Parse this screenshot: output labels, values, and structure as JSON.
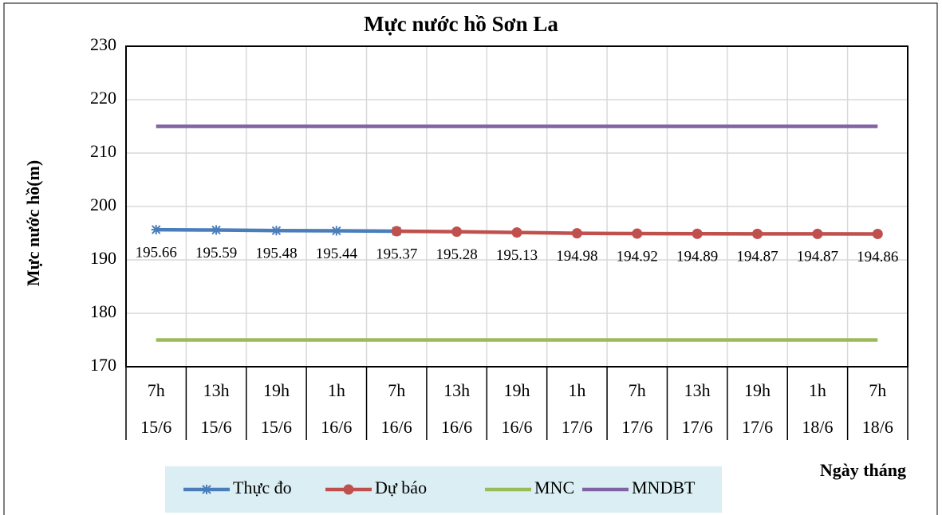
{
  "chart_data": {
    "type": "line",
    "title": "Mực nước hồ Sơn La",
    "y_label": "Mực nước hồ(m)",
    "x_label": "Ngày tháng",
    "categories": [
      [
        "7h",
        "15/6"
      ],
      [
        "13h",
        "15/6"
      ],
      [
        "19h",
        "15/6"
      ],
      [
        "1h",
        "16/6"
      ],
      [
        "7h",
        "16/6"
      ],
      [
        "13h",
        "16/6"
      ],
      [
        "19h",
        "16/6"
      ],
      [
        "1h",
        "17/6"
      ],
      [
        "7h",
        "17/6"
      ],
      [
        "13h",
        "17/6"
      ],
      [
        "19h",
        "17/6"
      ],
      [
        "1h",
        "18/6"
      ],
      [
        "7h",
        "18/6"
      ]
    ],
    "series": [
      {
        "name": "Thực đo",
        "color": "#4a7ebb",
        "marker": "star",
        "values": [
          195.66,
          195.59,
          195.48,
          195.44,
          195.37,
          null,
          null,
          null,
          null,
          null,
          null,
          null,
          null
        ]
      },
      {
        "name": "Dự báo",
        "color": "#c0504d",
        "marker": "circle",
        "values": [
          null,
          null,
          null,
          null,
          195.37,
          195.28,
          195.13,
          194.98,
          194.92,
          194.89,
          194.87,
          194.87,
          194.86
        ]
      },
      {
        "name": "MNC",
        "color": "#9bbb59",
        "marker": "none",
        "values": [
          175,
          175,
          175,
          175,
          175,
          175,
          175,
          175,
          175,
          175,
          175,
          175,
          175
        ]
      },
      {
        "name": "MNDBT",
        "color": "#8064a2",
        "marker": "none",
        "values": [
          215,
          215,
          215,
          215,
          215,
          215,
          215,
          215,
          215,
          215,
          215,
          215,
          215
        ]
      }
    ],
    "ylim": [
      170,
      230
    ],
    "yticks": [
      170,
      180,
      190,
      200,
      210,
      220,
      230
    ],
    "grid": true
  }
}
